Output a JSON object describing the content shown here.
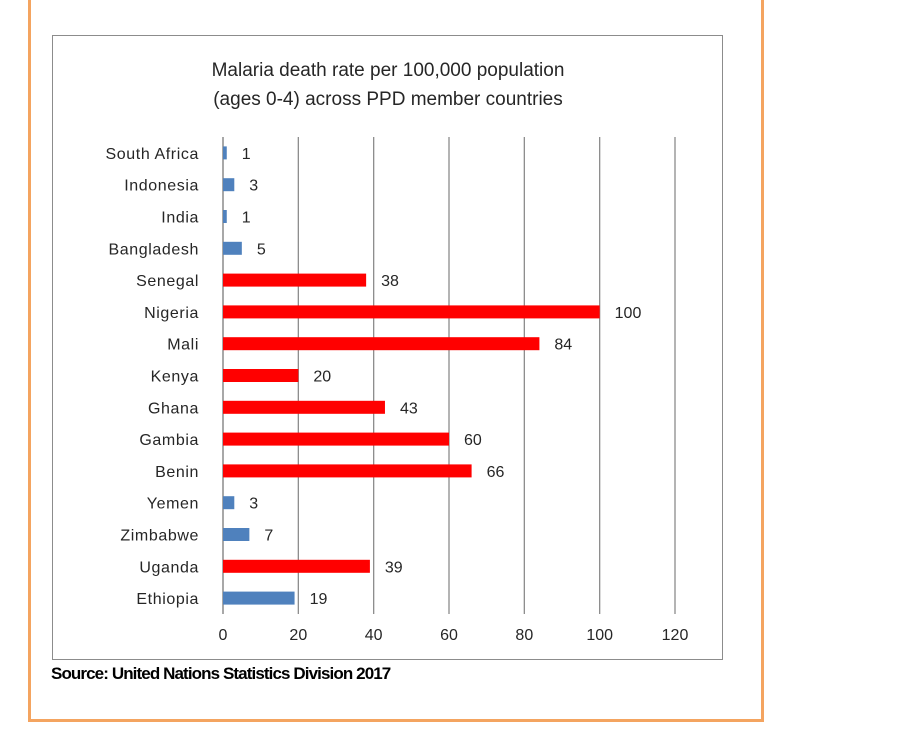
{
  "chart_data": {
    "type": "bar",
    "orientation": "horizontal",
    "title": [
      "Malaria death rate per 100,000  population",
      "(ages 0-4) across PPD member countries"
    ],
    "categories": [
      "South Africa",
      "Indonesia",
      "India",
      "Bangladesh",
      "Senegal",
      "Nigeria",
      "Mali",
      "Kenya",
      "Ghana",
      "Gambia",
      "Benin",
      "Yemen",
      "Zimbabwe",
      "Uganda",
      "Ethiopia"
    ],
    "values": [
      1,
      3,
      1,
      5,
      38,
      100,
      84,
      20,
      43,
      60,
      66,
      3,
      7,
      39,
      19
    ],
    "bar_colors": [
      "#4f81bd",
      "#4f81bd",
      "#4f81bd",
      "#4f81bd",
      "#ff0000",
      "#ff0000",
      "#ff0000",
      "#ff0000",
      "#ff0000",
      "#ff0000",
      "#ff0000",
      "#4f81bd",
      "#4f81bd",
      "#ff0000",
      "#4f81bd"
    ],
    "xlim": [
      0,
      120
    ],
    "xticks": [
      "0",
      "20",
      "40",
      "60",
      "80",
      "100",
      "120"
    ],
    "xlabel": "",
    "ylabel": "",
    "grid": "vertical"
  },
  "source": "Source: United Nations Statistics Division 2017",
  "colors": {
    "frame_border": "#f4a460",
    "gridline": "#8c8c8c"
  }
}
